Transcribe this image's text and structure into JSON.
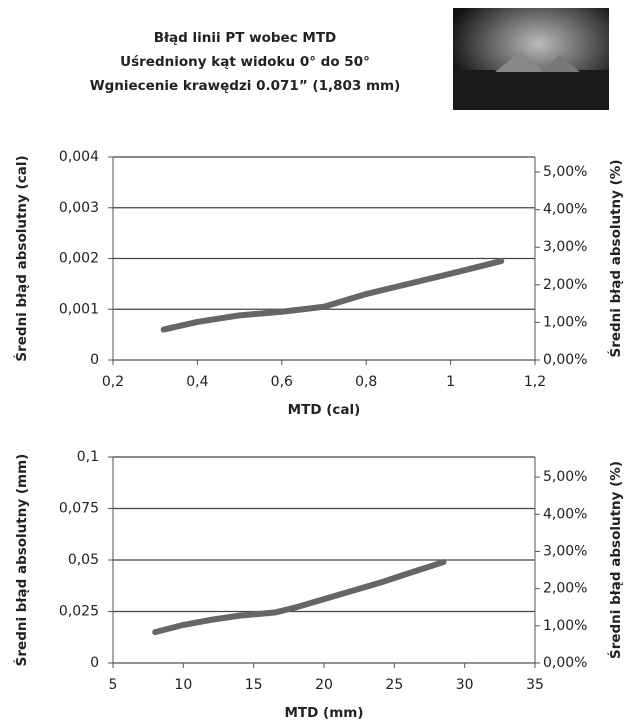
{
  "header": {
    "lines": [
      "Błąd linii PT wobec MTD",
      "Uśredniony kąt widoku 0° do 50°",
      "Wgniecenie krawędzi 0.071” (1,803 mm)"
    ]
  },
  "chart_data": [
    {
      "type": "line",
      "xlabel": "MTD (cal)",
      "ylabel": "Średni błąd absolutny (cal)",
      "y2label": "Średni błąd absolutny (%)",
      "x": [
        0.32,
        0.4,
        0.5,
        0.6,
        0.7,
        0.8,
        0.9,
        1.0,
        1.12
      ],
      "series": [
        {
          "color": "#666666",
          "values": [
            0.0006,
            0.00075,
            0.00088,
            0.00095,
            0.00105,
            0.0013,
            0.0015,
            0.0017,
            0.00195
          ]
        }
      ],
      "xlim": [
        0.2,
        1.2
      ],
      "xticks": [
        {
          "value": 0.2,
          "label": "0,2"
        },
        {
          "value": 0.4,
          "label": "0,4"
        },
        {
          "value": 0.6,
          "label": "0,6"
        },
        {
          "value": 0.8,
          "label": "0,8"
        },
        1,
        {
          "value": 1.2,
          "label": "1,2"
        }
      ],
      "ylim": [
        0,
        0.004
      ],
      "yticks": [
        0,
        {
          "value": 0.001,
          "label": "0,001"
        },
        {
          "value": 0.002,
          "label": "0,002"
        },
        {
          "value": 0.003,
          "label": "0,003"
        },
        {
          "value": 0.004,
          "label": "0,004"
        }
      ],
      "y2lim": [
        0,
        5.4
      ],
      "y2ticks": [
        {
          "value": 0,
          "label": "0,00%"
        },
        {
          "value": 1,
          "label": "1,00%"
        },
        {
          "value": 2,
          "label": "2,00%"
        },
        {
          "value": 3,
          "label": "3,00%"
        },
        {
          "value": 4,
          "label": "4,00%"
        },
        {
          "value": 5,
          "label": "5,00%"
        }
      ],
      "grid": true
    },
    {
      "type": "line",
      "xlabel": "MTD (mm)",
      "ylabel": "Średni błąd absolutny (mm)",
      "y2label": "Średni błąd absolutny (%)",
      "x": [
        8,
        10,
        12,
        14,
        16.5,
        18,
        20,
        22,
        24,
        26,
        28.5
      ],
      "series": [
        {
          "color": "#666666",
          "values": [
            0.015,
            0.0185,
            0.021,
            0.023,
            0.0245,
            0.027,
            0.031,
            0.035,
            0.039,
            0.0435,
            0.049
          ]
        }
      ],
      "xlim": [
        5,
        35
      ],
      "xticks": [
        5,
        10,
        15,
        20,
        25,
        30,
        35
      ],
      "ylim": [
        0,
        0.1
      ],
      "yticks": [
        0,
        {
          "value": 0.025,
          "label": "0,025"
        },
        {
          "value": 0.05,
          "label": "0,05"
        },
        {
          "value": 0.075,
          "label": "0,075"
        },
        {
          "value": 0.1,
          "label": "0,1"
        }
      ],
      "y2lim": [
        0,
        5.54
      ],
      "y2ticks": [
        {
          "value": 0,
          "label": "0,00%"
        },
        {
          "value": 1,
          "label": "1,00%"
        },
        {
          "value": 2,
          "label": "2,00%"
        },
        {
          "value": 3,
          "label": "3,00%"
        },
        {
          "value": 4,
          "label": "4,00%"
        },
        {
          "value": 5,
          "label": "5,00%"
        }
      ],
      "grid": true
    }
  ]
}
